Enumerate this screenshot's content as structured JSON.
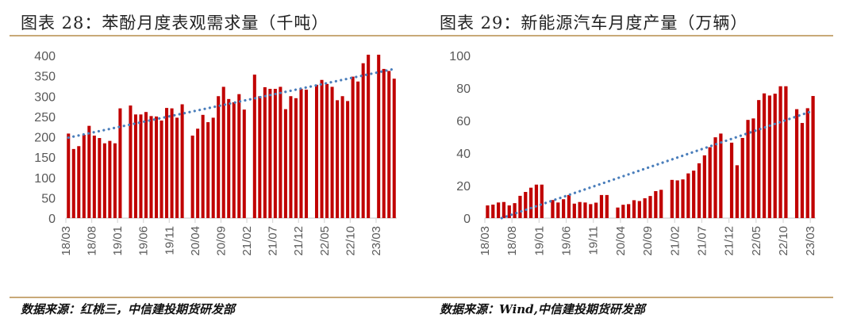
{
  "colors": {
    "bar": "#c00000",
    "trend": "#4a7ebb",
    "axis": "#d9d9d9",
    "rule": "#c8a978"
  },
  "chart_data": [
    {
      "type": "bar",
      "title": "图表 28：苯酚月度表观需求量（千吨）",
      "source": "数据来源：红桃三，中信建投期货研发部",
      "xlabel": "",
      "ylabel": "",
      "ylim": [
        0,
        400
      ],
      "yticks": [
        0,
        50,
        100,
        150,
        200,
        250,
        300,
        350,
        400
      ],
      "xtick_labels": [
        "18/03",
        "18/08",
        "19/01",
        "19/06",
        "19/11",
        "20/04",
        "20/09",
        "21/02",
        "21/07",
        "21/12",
        "22/05",
        "22/10",
        "23/03"
      ],
      "grid": false,
      "trendline": {
        "style": "dotted",
        "name": "linear trend",
        "start": 198,
        "end": 367
      },
      "categories_start": "18/03",
      "values": [
        208,
        170,
        177,
        205,
        227,
        203,
        197,
        184,
        190,
        184,
        270,
        null,
        277,
        255,
        255,
        261,
        251,
        250,
        240,
        271,
        270,
        247,
        280,
        null,
        203,
        220,
        254,
        236,
        247,
        300,
        323,
        293,
        285,
        305,
        267,
        null,
        353,
        300,
        322,
        318,
        318,
        323,
        268,
        300,
        295,
        318,
        316,
        null,
        328,
        340,
        330,
        323,
        290,
        300,
        288,
        348,
        336,
        381,
        402,
        null,
        402,
        367,
        362,
        343
      ]
    },
    {
      "type": "bar",
      "title": "图表 29：新能源汽车月度产量（万辆）",
      "source": "数据来源：Wind,中信建投期货研发部",
      "xlabel": "",
      "ylabel": "",
      "ylim": [
        0,
        100
      ],
      "yticks": [
        0,
        20,
        40,
        60,
        80,
        100
      ],
      "xtick_labels": [
        "18/03",
        "18/08",
        "19/01",
        "19/06",
        "19/11",
        "20/04",
        "20/09",
        "21/02",
        "21/07",
        "21/12",
        "22/05",
        "22/10",
        "23/03"
      ],
      "grid": false,
      "trendline": {
        "style": "dotted",
        "name": "linear trend",
        "start": -3,
        "end": 66
      },
      "categories_start": "18/03",
      "values": [
        7.8,
        8.3,
        9.6,
        9.9,
        7.8,
        9.2,
        13.7,
        16.1,
        18.7,
        20.6,
        20.6,
        null,
        11.1,
        9.6,
        11.6,
        14.2,
        8.9,
        9.9,
        9.6,
        8.6,
        9.5,
        14.2,
        14.2,
        null,
        6.5,
        8.2,
        8.6,
        11.0,
        10.5,
        12.2,
        13.6,
        16.6,
        17.4,
        null,
        23.5,
        23.2,
        23.8,
        27.5,
        29.2,
        33.7,
        38.6,
        43.6,
        49.7,
        52.0,
        null,
        46.4,
        32.5,
        49.3,
        60.4,
        61.3,
        72.6,
        76.7,
        75.4,
        76.5,
        81.1,
        81.1,
        null,
        67.0,
        58.5,
        67.6,
        75.1
      ]
    }
  ]
}
